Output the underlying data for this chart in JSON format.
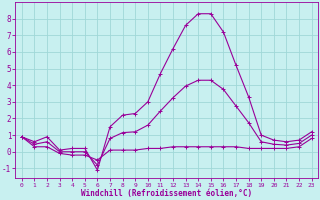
{
  "xlabel": "Windchill (Refroidissement éolien,°C)",
  "bg_color": "#c8f0f0",
  "line_color": "#990099",
  "grid_color": "#a0d8d8",
  "xlim": [
    -0.5,
    23.5
  ],
  "ylim": [
    -1.6,
    9.0
  ],
  "xticks": [
    0,
    1,
    2,
    3,
    4,
    5,
    6,
    7,
    8,
    9,
    10,
    11,
    12,
    13,
    14,
    15,
    16,
    17,
    18,
    19,
    20,
    21,
    22,
    23
  ],
  "yticks": [
    -1,
    0,
    1,
    2,
    3,
    4,
    5,
    6,
    7,
    8
  ],
  "series1_x": [
    0,
    1,
    2,
    3,
    4,
    5,
    6,
    7,
    8,
    9,
    10,
    11,
    12,
    13,
    14,
    15,
    16,
    17,
    18,
    19,
    20,
    21,
    22,
    23
  ],
  "series1_y": [
    0.9,
    0.6,
    0.9,
    0.1,
    0.2,
    0.2,
    -1.1,
    1.5,
    2.2,
    2.3,
    3.0,
    4.7,
    6.2,
    7.6,
    8.3,
    8.3,
    7.2,
    5.2,
    3.3,
    1.0,
    0.7,
    0.6,
    0.7,
    1.2
  ],
  "series2_x": [
    0,
    1,
    2,
    3,
    4,
    5,
    6,
    7,
    8,
    9,
    10,
    11,
    12,
    13,
    14,
    15,
    16,
    17,
    18,
    19,
    20,
    21,
    22,
    23
  ],
  "series2_y": [
    0.9,
    0.3,
    0.3,
    -0.1,
    -0.2,
    -0.2,
    -0.5,
    0.1,
    0.1,
    0.1,
    0.2,
    0.2,
    0.3,
    0.3,
    0.3,
    0.3,
    0.3,
    0.3,
    0.2,
    0.2,
    0.2,
    0.2,
    0.3,
    0.8
  ],
  "series3_x": [
    0,
    1,
    2,
    3,
    4,
    5,
    6,
    7,
    8,
    9,
    10,
    11,
    12,
    13,
    14,
    15,
    16,
    17,
    18,
    19,
    20,
    21,
    22,
    23
  ],
  "series3_y": [
    0.9,
    0.45,
    0.6,
    0.0,
    0.0,
    0.0,
    -0.8,
    0.8,
    1.15,
    1.2,
    1.6,
    2.45,
    3.25,
    3.95,
    4.3,
    4.3,
    3.75,
    2.75,
    1.75,
    0.6,
    0.45,
    0.4,
    0.5,
    1.0
  ]
}
